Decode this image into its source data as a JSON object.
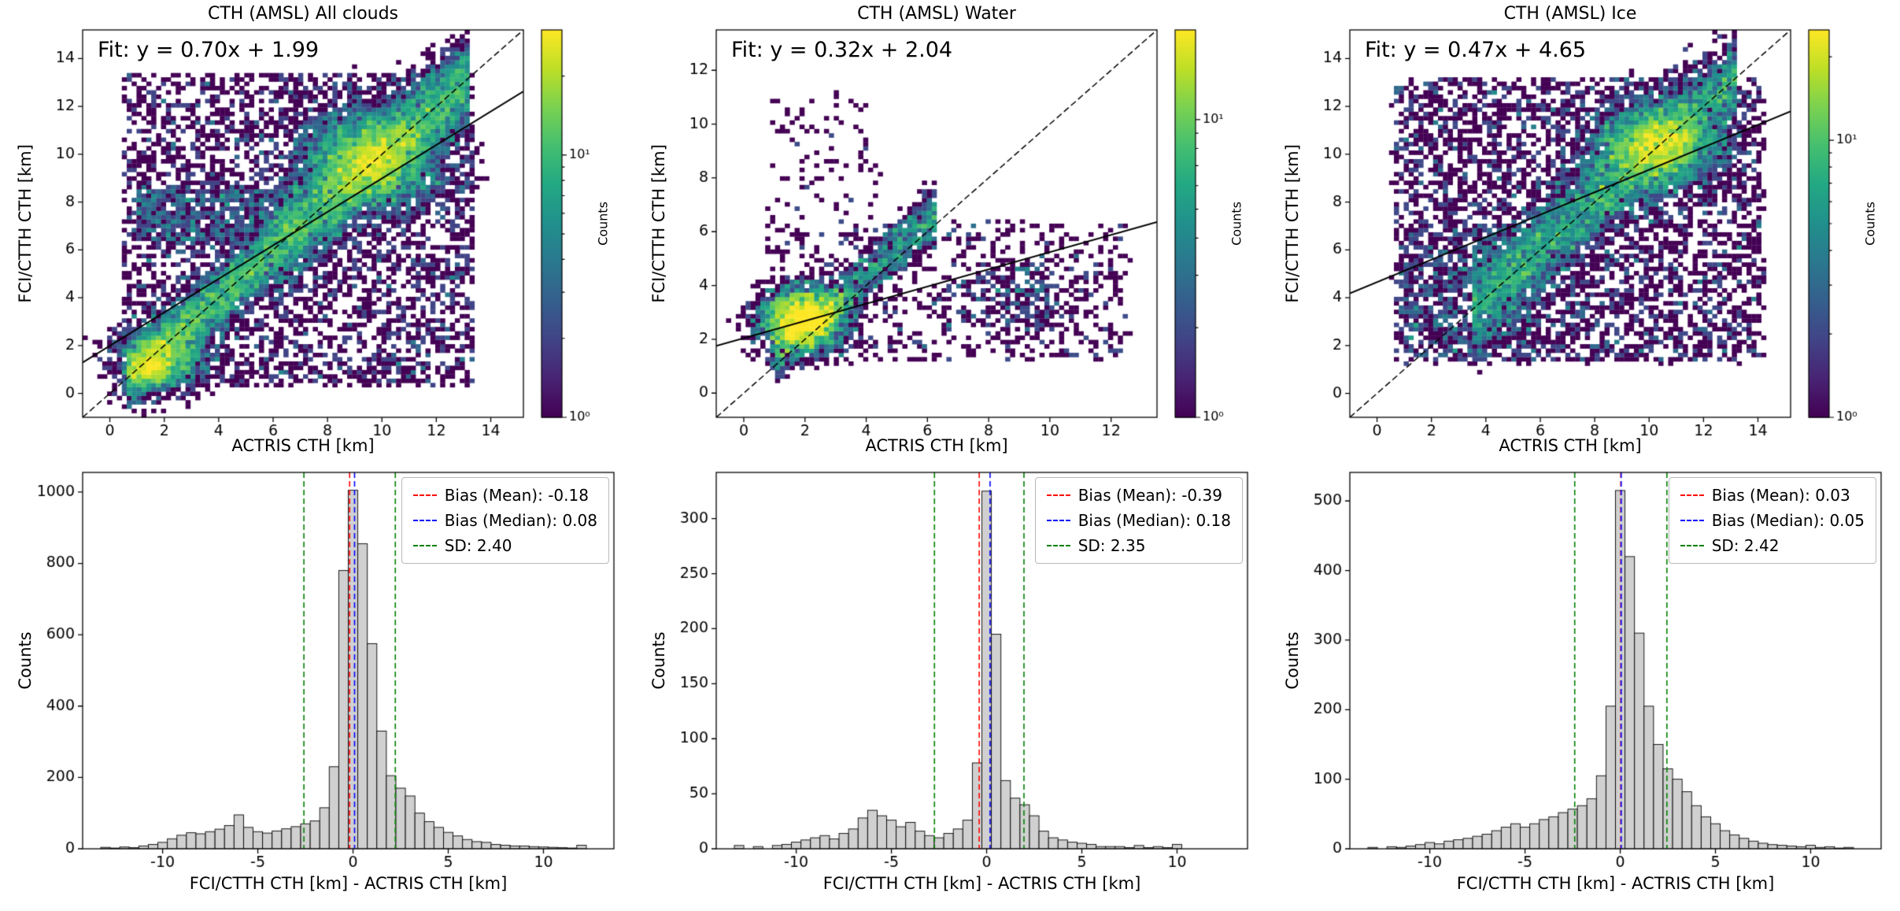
{
  "figure": {
    "background": "#ffffff"
  },
  "colors": {
    "fit_line": "#000000",
    "identity_line": "#000000",
    "hist_fill": "#d0d0d0",
    "hist_edge": "#000000",
    "mean_line": "#ff0000",
    "median_line": "#0000ff",
    "sd_line": "#008000",
    "colormap": "viridis"
  },
  "chart_data": [
    {
      "type": "heatmap",
      "title": "CTH (AMSL) All clouds",
      "xlabel": "ACTRIS CTH [km]",
      "ylabel": "FCI/CTTH CTH [km]",
      "fit_label": "Fit: y = 0.70x + 1.99",
      "fit": {
        "slope": 0.7,
        "intercept": 1.99
      },
      "identity_line": true,
      "xlim": [
        -1,
        15.2
      ],
      "ylim": [
        -1,
        15.2
      ],
      "xticks": [
        0,
        2,
        4,
        6,
        8,
        10,
        12,
        14
      ],
      "yticks": [
        0,
        2,
        4,
        6,
        8,
        10,
        12,
        14
      ],
      "bins": 90,
      "colorbar": {
        "label": "Counts",
        "scale": "log",
        "vmax": 30,
        "tick_labels": [
          "10⁰",
          "10¹"
        ]
      },
      "density_estimate": {
        "seed": 11,
        "components": [
          {
            "kind": "diag",
            "n": 3000,
            "xrange": [
              0.6,
              6.0
            ],
            "sigma": 0.7
          },
          {
            "kind": "diag",
            "n": 5000,
            "xrange": [
              6.0,
              13.2
            ],
            "sigma": 0.95
          },
          {
            "kind": "blob",
            "n": 4000,
            "center": [
              9.6,
              9.8
            ],
            "spread": [
              1.25,
              1.05
            ]
          },
          {
            "kind": "blob",
            "n": 1400,
            "center": [
              1.9,
              1.5
            ],
            "spread": [
              0.85,
              0.75
            ]
          },
          {
            "kind": "blob",
            "n": 400,
            "center": [
              1.5,
              1.0
            ],
            "spread": [
              0.4,
              0.3
            ]
          },
          {
            "kind": "uniform",
            "n": 700,
            "xrange": [
              1.0,
              7.0
            ],
            "yrange": [
              6.3,
              8.6
            ]
          },
          {
            "kind": "uniform",
            "n": 3600,
            "xrange": [
              0.5,
              13.4
            ],
            "yrange": [
              0.3,
              13.4
            ]
          }
        ]
      }
    },
    {
      "type": "heatmap",
      "title": "CTH (AMSL) Water",
      "xlabel": "ACTRIS CTH [km]",
      "ylabel": "FCI/CTTH CTH [km]",
      "fit_label": "Fit: y = 0.32x + 2.04",
      "fit": {
        "slope": 0.32,
        "intercept": 2.04
      },
      "identity_line": true,
      "xlim": [
        -0.9,
        13.5
      ],
      "ylim": [
        -0.9,
        13.5
      ],
      "xticks": [
        0,
        2,
        4,
        6,
        8,
        10,
        12
      ],
      "yticks": [
        0,
        2,
        4,
        6,
        8,
        10,
        12
      ],
      "bins": 90,
      "colorbar": {
        "label": "Counts",
        "scale": "log",
        "vmax": 20,
        "tick_labels": [
          "10⁰",
          "10¹"
        ]
      },
      "density_estimate": {
        "seed": 23,
        "components": [
          {
            "kind": "blob",
            "n": 2600,
            "center": [
              1.9,
              2.75
            ],
            "spread": [
              0.7,
              0.6
            ]
          },
          {
            "kind": "diag",
            "n": 1300,
            "xrange": [
              1.0,
              6.3
            ],
            "offset": 0.35,
            "sigma": 0.5
          },
          {
            "kind": "uniform",
            "n": 700,
            "xrange": [
              0.6,
              12.6
            ],
            "yrange": [
              1.2,
              6.4
            ]
          },
          {
            "kind": "uniform",
            "n": 90,
            "xrange": [
              0.6,
              4.5
            ],
            "yrange": [
              6.4,
              11.3
            ]
          },
          {
            "kind": "blob",
            "n": 260,
            "center": [
              8.8,
              3.6
            ],
            "spread": [
              1.2,
              0.75
            ]
          }
        ]
      }
    },
    {
      "type": "heatmap",
      "title": "CTH (AMSL) Ice",
      "xlabel": "ACTRIS CTH [km]",
      "ylabel": "FCI/CTTH CTH [km]",
      "fit_label": "Fit: y = 0.47x + 4.65",
      "fit": {
        "slope": 0.47,
        "intercept": 4.65
      },
      "identity_line": true,
      "xlim": [
        -1,
        15.2
      ],
      "ylim": [
        -1,
        15.2
      ],
      "xticks": [
        0,
        2,
        4,
        6,
        8,
        10,
        12,
        14
      ],
      "yticks": [
        0,
        2,
        4,
        6,
        8,
        10,
        12,
        14
      ],
      "bins": 90,
      "colorbar": {
        "label": "Counts",
        "scale": "log",
        "vmax": 25,
        "tick_labels": [
          "10⁰",
          "10¹"
        ]
      },
      "density_estimate": {
        "seed": 37,
        "components": [
          {
            "kind": "diag",
            "n": 4500,
            "xrange": [
              3.5,
              13.2
            ],
            "sigma": 1.0
          },
          {
            "kind": "blob",
            "n": 3000,
            "center": [
              10.3,
              10.4
            ],
            "spread": [
              1.15,
              0.9
            ]
          },
          {
            "kind": "uniform",
            "n": 3800,
            "xrange": [
              0.6,
              14.2
            ],
            "yrange": [
              1.3,
              13.2
            ]
          },
          {
            "kind": "uniform",
            "n": 600,
            "xrange": [
              1.0,
              6.0
            ],
            "yrange": [
              1.5,
              7.0
            ]
          }
        ]
      }
    },
    {
      "type": "bar",
      "title": "",
      "xlabel": "FCI/CTTH CTH [km] - ACTRIS CTH [km]",
      "ylabel": "Counts",
      "xlim": [
        -14.2,
        13.7
      ],
      "ylim": [
        0,
        1055
      ],
      "xticks": [
        -10,
        -5,
        0,
        5,
        10
      ],
      "yticks": [
        0,
        200,
        400,
        600,
        800,
        1000
      ],
      "bins": {
        "start": -13.25,
        "width": 0.5,
        "counts": [
          4,
          2,
          5,
          3,
          8,
          12,
          18,
          28,
          38,
          45,
          42,
          48,
          55,
          65,
          95,
          60,
          48,
          44,
          50,
          56,
          62,
          70,
          78,
          115,
          230,
          780,
          1005,
          855,
          575,
          330,
          205,
          170,
          148,
          100,
          76,
          60,
          46,
          36,
          26,
          20,
          18,
          12,
          10,
          8,
          8,
          6,
          5,
          4,
          3,
          2,
          10,
          0
        ]
      },
      "stats": {
        "mean": -0.18,
        "median": 0.08,
        "sd": 2.4
      },
      "legend": [
        {
          "label": "Bias (Mean): -0.18",
          "color": "#ff0000"
        },
        {
          "label": "Bias (Median): 0.08",
          "color": "#0000ff"
        },
        {
          "label": "SD: 2.40",
          "color": "#008000"
        }
      ]
    },
    {
      "type": "bar",
      "title": "",
      "xlabel": "FCI/CTTH CTH [km] - ACTRIS CTH [km]",
      "ylabel": "Counts",
      "xlim": [
        -14.2,
        13.7
      ],
      "ylim": [
        0,
        342
      ],
      "xticks": [
        -10,
        -5,
        0,
        5,
        10
      ],
      "yticks": [
        0,
        50,
        100,
        150,
        200,
        250,
        300
      ],
      "bins": {
        "start": -13.25,
        "width": 0.5,
        "counts": [
          3,
          0,
          2,
          0,
          3,
          4,
          6,
          8,
          10,
          12,
          9,
          14,
          18,
          28,
          35,
          30,
          26,
          20,
          24,
          16,
          12,
          10,
          14,
          18,
          26,
          78,
          325,
          195,
          62,
          46,
          40,
          30,
          16,
          10,
          8,
          6,
          5,
          4,
          2,
          2,
          2,
          1,
          3,
          1,
          2,
          1,
          4,
          0,
          0,
          0,
          0,
          0
        ]
      },
      "stats": {
        "mean": -0.39,
        "median": 0.18,
        "sd": 2.35
      },
      "legend": [
        {
          "label": "Bias (Mean): -0.39",
          "color": "#ff0000"
        },
        {
          "label": "Bias (Median): 0.18",
          "color": "#0000ff"
        },
        {
          "label": "SD: 2.35",
          "color": "#008000"
        }
      ]
    },
    {
      "type": "bar",
      "title": "",
      "xlabel": "FCI/CTTH CTH [km] - ACTRIS CTH [km]",
      "ylabel": "Counts",
      "xlim": [
        -14.2,
        13.7
      ],
      "ylim": [
        0,
        541
      ],
      "xticks": [
        -10,
        -5,
        0,
        5,
        10
      ],
      "yticks": [
        0,
        100,
        200,
        300,
        400,
        500
      ],
      "bins": {
        "start": -13.25,
        "width": 0.5,
        "counts": [
          2,
          0,
          3,
          2,
          4,
          6,
          9,
          7,
          11,
          13,
          15,
          18,
          21,
          26,
          31,
          36,
          31,
          36,
          42,
          46,
          52,
          57,
          62,
          72,
          105,
          205,
          515,
          420,
          310,
          205,
          150,
          115,
          100,
          82,
          62,
          46,
          36,
          26,
          20,
          15,
          11,
          8,
          6,
          5,
          4,
          3,
          5,
          2,
          3,
          1,
          2,
          0
        ]
      },
      "stats": {
        "mean": 0.03,
        "median": 0.05,
        "sd": 2.42
      },
      "legend": [
        {
          "label": "Bias (Mean): 0.03",
          "color": "#ff0000"
        },
        {
          "label": "Bias (Median): 0.05",
          "color": "#0000ff"
        },
        {
          "label": "SD: 2.42",
          "color": "#008000"
        }
      ]
    }
  ]
}
